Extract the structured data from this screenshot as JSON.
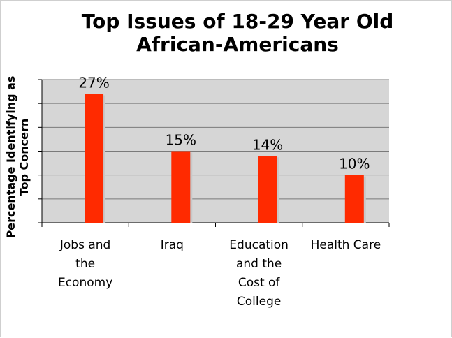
{
  "chart_data": {
    "type": "bar",
    "title": "Top Issues of 18-29 Year Old\nAfrican-Americans",
    "ylabel": "Percentage Identifying as\nTop Concern",
    "xlabel": "",
    "categories": [
      [
        "Jobs and",
        "the",
        "Economy"
      ],
      [
        "Iraq"
      ],
      [
        "Education",
        "and the",
        "Cost of",
        "College"
      ],
      [
        "Health Care"
      ]
    ],
    "values": [
      27,
      15,
      14,
      10
    ],
    "data_labels": [
      "27%",
      "15%",
      "14%",
      "10%"
    ],
    "ylim": [
      0,
      30
    ],
    "gridlines": [
      0,
      5,
      10,
      15,
      20,
      25,
      30
    ],
    "grid": true,
    "legend": "none",
    "colors": {
      "bar": "#ff2a00",
      "bar_shadow": "#c8c8c8",
      "plot_background": "#d6d6d6",
      "gridline": "#7a7a7a"
    }
  }
}
